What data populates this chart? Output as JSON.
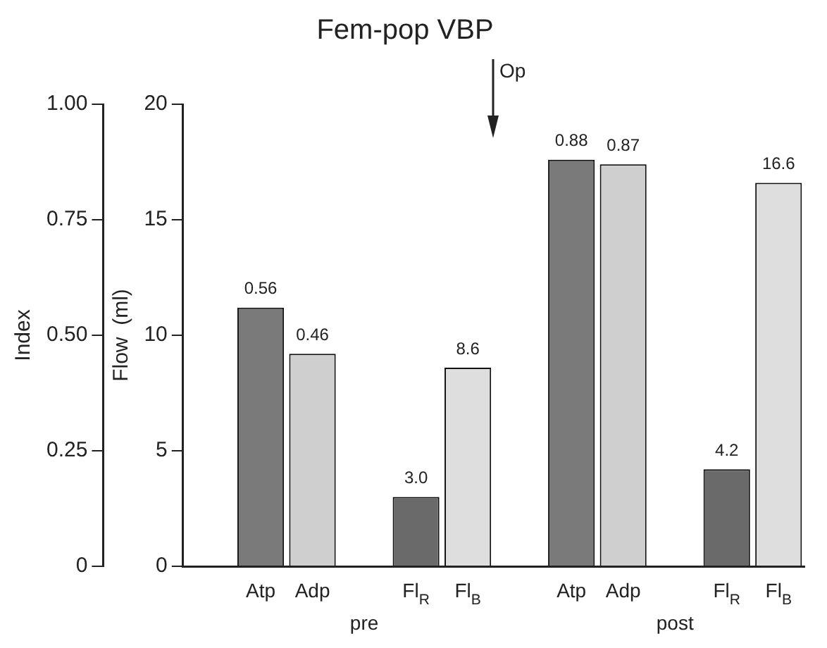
{
  "chart_data": {
    "type": "bar",
    "title": "Fem-pop VBP",
    "ylabel": "Flow  (ml)",
    "y2label": "Index",
    "categories": [
      null,
      "Atp",
      "Adp",
      null,
      "Fl$_{R}$",
      "Fl$_{B}$",
      null,
      "Atp",
      "Adp",
      null,
      "Fl$_{R}$",
      "Fl$_{B}$"
    ],
    "series": [
      {
        "axis": "y2",
        "values": [
          null,
          0.56,
          0.46,
          null,
          null,
          null,
          null,
          0.88,
          0.87,
          null,
          null,
          null
        ],
        "colors": [
          null,
          "#7a7a7a",
          "#cfcfcf",
          null,
          null,
          null,
          null,
          "#7a7a7a",
          "#cfcfcf",
          null,
          null,
          null
        ],
        "value_labels": [
          null,
          "0.56",
          "0.46",
          null,
          null,
          null,
          null,
          "0.88",
          "0.87",
          null,
          null,
          null
        ]
      },
      {
        "values": [
          null,
          null,
          null,
          null,
          3.0,
          8.6,
          null,
          null,
          null,
          null,
          4.2,
          16.6
        ],
        "colors": [
          null,
          null,
          null,
          null,
          "#6a6a6a",
          "#dedede",
          null,
          null,
          null,
          null,
          "#6a6a6a",
          "#dedede"
        ],
        "value_labels": [
          null,
          null,
          null,
          null,
          "3.0",
          "8.6",
          null,
          null,
          null,
          null,
          "4.2",
          "16.6"
        ]
      }
    ],
    "ylim": [
      0,
      20
    ],
    "yticks": [
      0,
      5,
      10,
      15,
      20
    ],
    "y2lim": [
      0,
      1
    ],
    "y2ticks": [
      0,
      0.25,
      {
        "value": 0.5,
        "label": "0.50"
      },
      0.75,
      {
        "value": 1,
        "label": "1.00"
      }
    ],
    "annotations": [
      "pre",
      "post",
      "Op"
    ]
  }
}
